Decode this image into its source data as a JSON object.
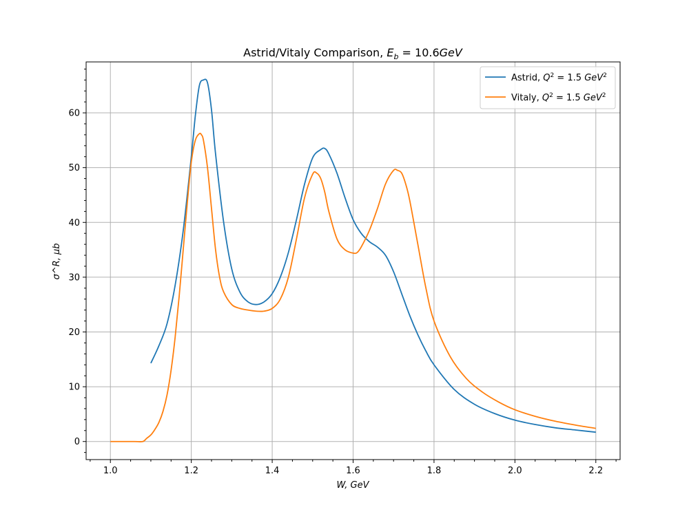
{
  "chart_data": {
    "type": "line",
    "title": "Astrid/Vitaly Comparison, E_b = 10.6GeV",
    "title_parts": [
      "Astrid/Vitaly Comparison, ",
      "E",
      "b",
      " = 10.6",
      "GeV"
    ],
    "xlabel": "W, GeV",
    "ylabel": "σ^R, μb",
    "xlim": [
      0.94,
      2.26
    ],
    "ylim": [
      -3.3,
      69.3
    ],
    "xticks": [
      1.0,
      1.2,
      1.4,
      1.6,
      1.8,
      2.0,
      2.2
    ],
    "xtick_labels": [
      "1.0",
      "1.2",
      "1.4",
      "1.6",
      "1.8",
      "2.0",
      "2.2"
    ],
    "yticks": [
      0,
      10,
      20,
      30,
      40,
      50,
      60
    ],
    "ytick_labels": [
      "0",
      "10",
      "20",
      "30",
      "40",
      "50",
      "60"
    ],
    "grid": true,
    "legend_position": "top-right",
    "series": [
      {
        "name": "Astrid, Q^2 = 1.5 GeV^2",
        "legend_parts": [
          "Astrid, ",
          "Q",
          "2",
          " = 1.5 ",
          "GeV",
          "2"
        ],
        "color": "#1f77b4",
        "x": [
          1.1,
          1.12,
          1.14,
          1.16,
          1.18,
          1.2,
          1.21,
          1.22,
          1.23,
          1.24,
          1.25,
          1.26,
          1.28,
          1.3,
          1.32,
          1.34,
          1.36,
          1.38,
          1.4,
          1.42,
          1.44,
          1.46,
          1.48,
          1.5,
          1.52,
          1.53,
          1.54,
          1.56,
          1.58,
          1.6,
          1.62,
          1.64,
          1.66,
          1.68,
          1.7,
          1.72,
          1.74,
          1.76,
          1.78,
          1.8,
          1.85,
          1.9,
          1.95,
          2.0,
          2.05,
          2.1,
          2.15,
          2.2
        ],
        "y": [
          14.3,
          17.5,
          21.5,
          28.5,
          38.5,
          52.0,
          59.5,
          65.0,
          66.0,
          65.5,
          60.5,
          52.5,
          40.0,
          31.5,
          27.3,
          25.5,
          25.0,
          25.5,
          27.0,
          30.0,
          34.5,
          40.5,
          47.0,
          51.8,
          53.3,
          53.5,
          52.5,
          49.0,
          44.5,
          40.5,
          38.0,
          36.5,
          35.5,
          34.0,
          31.0,
          27.0,
          23.0,
          19.5,
          16.5,
          14.0,
          9.5,
          6.8,
          5.1,
          3.9,
          3.1,
          2.5,
          2.1,
          1.7
        ]
      },
      {
        "name": "Vitaly, Q^2 = 1.5 GeV^2",
        "legend_parts": [
          "Vitaly, ",
          "Q",
          "2",
          " = 1.5 ",
          "GeV",
          "2"
        ],
        "color": "#ff7f0e",
        "x": [
          1.0,
          1.02,
          1.04,
          1.06,
          1.08,
          1.09,
          1.1,
          1.11,
          1.12,
          1.13,
          1.14,
          1.15,
          1.16,
          1.17,
          1.18,
          1.19,
          1.2,
          1.21,
          1.22,
          1.225,
          1.23,
          1.24,
          1.25,
          1.26,
          1.27,
          1.28,
          1.3,
          1.32,
          1.34,
          1.36,
          1.38,
          1.4,
          1.42,
          1.44,
          1.46,
          1.48,
          1.5,
          1.51,
          1.52,
          1.53,
          1.54,
          1.56,
          1.58,
          1.6,
          1.61,
          1.62,
          1.64,
          1.66,
          1.68,
          1.7,
          1.71,
          1.72,
          1.73,
          1.74,
          1.76,
          1.78,
          1.8,
          1.84,
          1.88,
          1.92,
          1.96,
          2.0,
          2.05,
          2.1,
          2.15,
          2.2
        ],
        "y": [
          0.0,
          0.0,
          0.0,
          0.0,
          0.0,
          0.6,
          1.2,
          2.2,
          3.5,
          5.5,
          8.5,
          13.0,
          19.0,
          26.5,
          35.0,
          43.5,
          51.0,
          55.0,
          56.2,
          56.0,
          55.0,
          50.0,
          42.5,
          35.0,
          30.0,
          27.3,
          25.0,
          24.3,
          24.0,
          23.8,
          23.8,
          24.3,
          26.0,
          30.0,
          37.0,
          44.5,
          48.8,
          49.0,
          48.0,
          45.5,
          42.0,
          37.0,
          35.0,
          34.4,
          34.5,
          35.5,
          38.5,
          42.5,
          47.0,
          49.5,
          49.5,
          49.0,
          47.0,
          44.0,
          36.0,
          28.0,
          22.0,
          15.5,
          11.5,
          9.0,
          7.2,
          5.8,
          4.6,
          3.7,
          3.0,
          2.4
        ]
      }
    ]
  }
}
